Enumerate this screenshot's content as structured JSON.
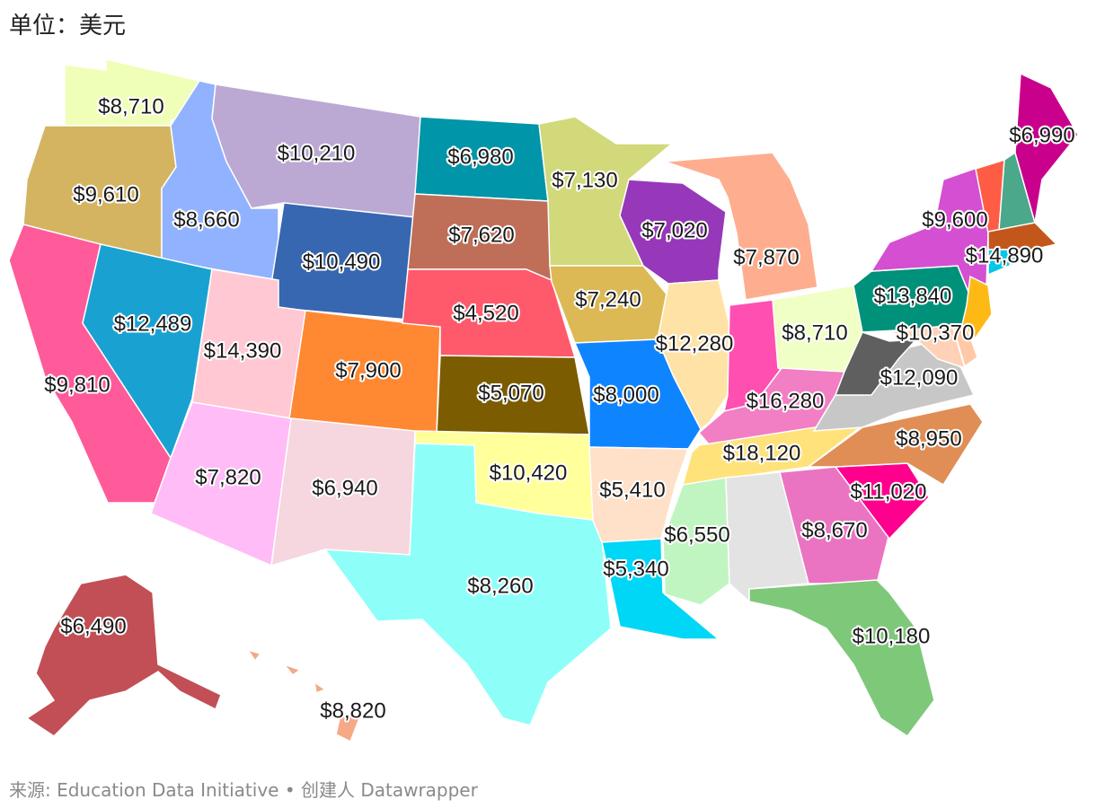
{
  "title": "单位：美元",
  "footer": "来源: Education Data Initiative • 创建人 Datawrapper",
  "states": [
    {
      "id": "WA",
      "value": "$8,710",
      "color": "#efffb8"
    },
    {
      "id": "OR",
      "value": "$9,610",
      "color": "#d4b461"
    },
    {
      "id": "CA",
      "value": "$9,810",
      "color": "#ff5a9a"
    },
    {
      "id": "ID",
      "value": "$8,660",
      "color": "#91b2ff"
    },
    {
      "id": "NV",
      "value": "$12,489",
      "color": "#19a2d1"
    },
    {
      "id": "MT",
      "value": "$10,210",
      "color": "#bba9d4"
    },
    {
      "id": "WY",
      "value": "$10,490",
      "color": "#3667b0"
    },
    {
      "id": "UT",
      "value": "$14,390",
      "color": "#ffc8d3"
    },
    {
      "id": "AZ",
      "value": "$7,820",
      "color": "#ffbcf7"
    },
    {
      "id": "CO",
      "value": "$7,900",
      "color": "#ff8833"
    },
    {
      "id": "NM",
      "value": "$6,940",
      "color": "#f6d6df"
    },
    {
      "id": "ND",
      "value": "$6,980",
      "color": "#0095a8"
    },
    {
      "id": "SD",
      "value": "$7,620",
      "color": "#bf6e58"
    },
    {
      "id": "NE",
      "value": "$4,520",
      "color": "#ff596c"
    },
    {
      "id": "KS",
      "value": "$5,070",
      "color": "#7b5c00"
    },
    {
      "id": "OK",
      "value": "$10,420",
      "color": "#ffff9c"
    },
    {
      "id": "TX",
      "value": "$8,260",
      "color": "#8dfff8"
    },
    {
      "id": "MN",
      "value": "$7,130",
      "color": "#d1d97a"
    },
    {
      "id": "IA",
      "value": "$7,240",
      "color": "#dcb955"
    },
    {
      "id": "MO",
      "value": "$8,000",
      "color": "#0f84ff"
    },
    {
      "id": "AR",
      "value": "$5,410",
      "color": "#ffe0c9"
    },
    {
      "id": "LA",
      "value": "$5,340",
      "color": "#00d6f5"
    },
    {
      "id": "WI",
      "value": "$7,020",
      "color": "#9638b9"
    },
    {
      "id": "IL",
      "value": "$12,280",
      "color": "#ffe3a6"
    },
    {
      "id": "MI",
      "value": "$7,870",
      "color": "#ffad8f"
    },
    {
      "id": "IN",
      "value": "",
      "color": "#ff4fb0"
    },
    {
      "id": "OH",
      "value": "$8,710",
      "color": "#efffc6"
    },
    {
      "id": "KY",
      "value": "$16,280",
      "color": "#f27ec4"
    },
    {
      "id": "TN",
      "value": "$18,120",
      "color": "#ffe27a"
    },
    {
      "id": "MS",
      "value": "$6,550",
      "color": "#c0f5c2"
    },
    {
      "id": "AL",
      "value": "",
      "color": "#e3e3e3"
    },
    {
      "id": "GA",
      "value": "$8,670",
      "color": "#ea74c2"
    },
    {
      "id": "FL",
      "value": "$10,180",
      "color": "#7ec87a"
    },
    {
      "id": "SC",
      "value": "$11,020",
      "color": "#ff008e"
    },
    {
      "id": "NC",
      "value": "$8,950",
      "color": "#e08e55"
    },
    {
      "id": "VA",
      "value": "$12,090",
      "color": "#c7c7c7"
    },
    {
      "id": "WV",
      "value": "",
      "color": "#5f5f5f"
    },
    {
      "id": "PA",
      "value": "$13,840",
      "color": "#00917b"
    },
    {
      "id": "NY",
      "value": "$9,600",
      "color": "#d44fd2"
    },
    {
      "id": "NJ",
      "value": "",
      "color": "#ffb915"
    },
    {
      "id": "MD",
      "value": "$10,370",
      "color": "#ffd1b6"
    },
    {
      "id": "DE",
      "value": "",
      "color": "#ffc9a6"
    },
    {
      "id": "VT",
      "value": "",
      "color": "#ff5c45"
    },
    {
      "id": "NH",
      "value": "",
      "color": "#4ba88a"
    },
    {
      "id": "ME",
      "value": "$6,990",
      "color": "#c9008c"
    },
    {
      "id": "MA",
      "value": "$14,890",
      "color": "#c3571b"
    },
    {
      "id": "CT",
      "value": "",
      "color": "#00c8e6"
    },
    {
      "id": "RI",
      "value": "",
      "color": "#7fd4e6"
    },
    {
      "id": "AK",
      "value": "$6,490",
      "color": "#c14f55"
    },
    {
      "id": "HI",
      "value": "$8,820",
      "color": "#f5a987"
    }
  ]
}
